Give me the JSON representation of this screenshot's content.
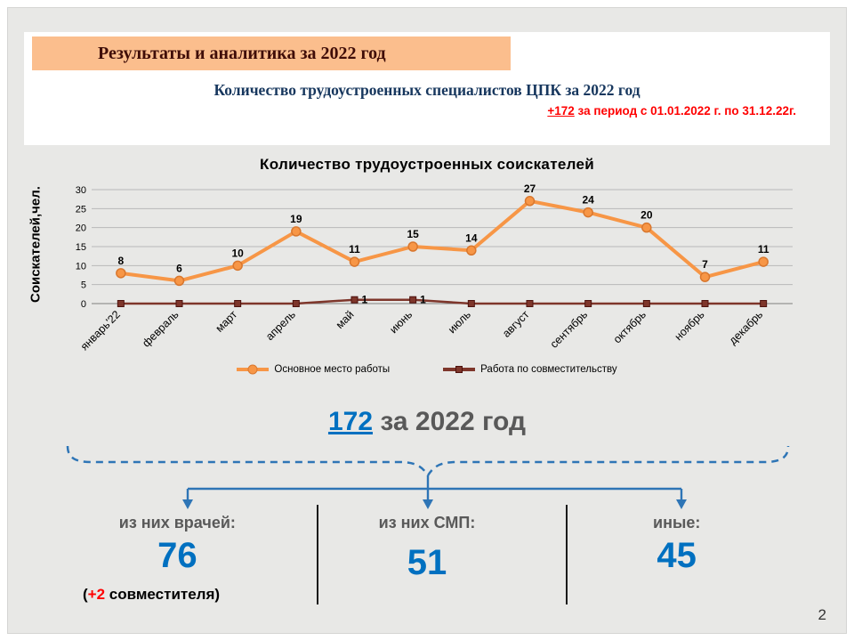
{
  "slide": {
    "page_number": "2"
  },
  "header": {
    "title": "Результаты и аналитика за 2022 год",
    "subtitle": "Количество трудоустроенных специалистов ЦПК за 2022 год",
    "period_highlight": "+172",
    "period_text": " за период с 01.01.2022 г. по 31.12.22г."
  },
  "chart_data": {
    "type": "line",
    "title": "Количество трудоустроенных соискателей",
    "ylabel": "Соискателей,чел.",
    "ylim": [
      0,
      30
    ],
    "yticks": [
      0,
      5,
      10,
      15,
      20,
      25,
      30
    ],
    "grid": true,
    "legend_position": "bottom",
    "categories": [
      "январь'22",
      "февраль",
      "март",
      "апрель",
      "май",
      "июнь",
      "июль",
      "август",
      "сентябрь",
      "октябрь",
      "ноябрь",
      "декабрь"
    ],
    "series": [
      {
        "name": "Основное место работы",
        "color": "#F79646",
        "marker": "circle",
        "values": [
          8,
          6,
          10,
          19,
          11,
          15,
          14,
          27,
          24,
          20,
          7,
          11
        ]
      },
      {
        "name": "Работа по совместительству",
        "color": "#7E362B",
        "marker": "square",
        "values": [
          0,
          0,
          0,
          0,
          1,
          1,
          0,
          0,
          0,
          0,
          0,
          0
        ]
      }
    ]
  },
  "summary": {
    "total": "172",
    "suffix": " за 2022 год"
  },
  "breakdown": {
    "doctors": {
      "label": "из них врачей:",
      "value": "76",
      "note_open": "(",
      "note_highlight": "+2",
      "note_rest": " совместителя)"
    },
    "smp": {
      "label": "из них СМП:",
      "value": "51"
    },
    "others": {
      "label": "иные:",
      "value": "45"
    }
  },
  "colors": {
    "accent_blue": "#0070C0",
    "brace_blue": "#2E75B6",
    "orange_band": "#FBBE8D",
    "red": "#FF0000",
    "gray_text": "#595959"
  }
}
